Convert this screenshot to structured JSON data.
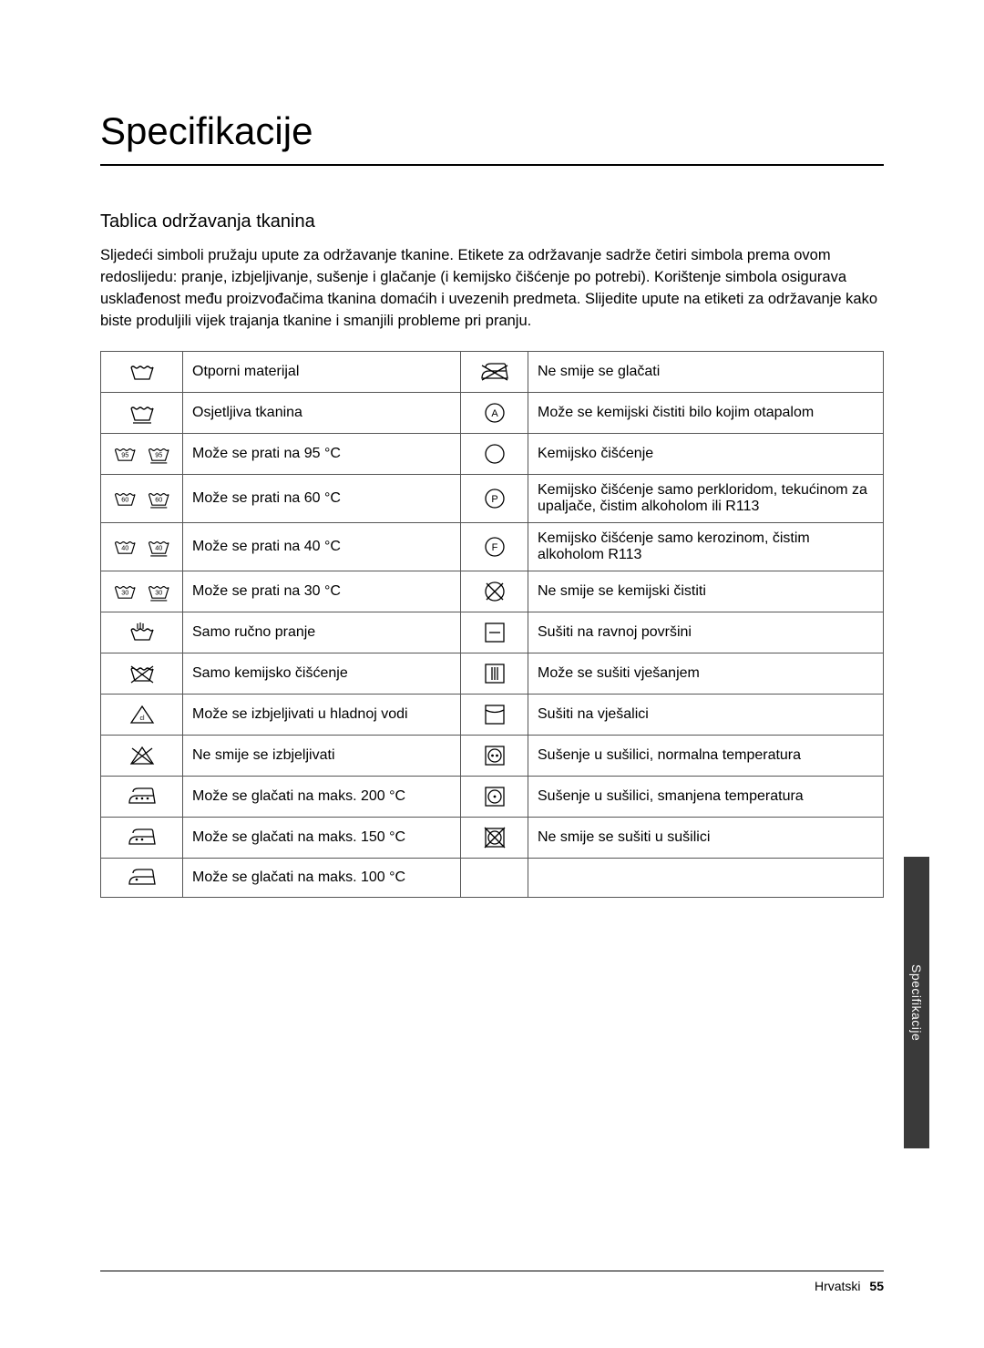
{
  "title": "Specifikacije",
  "subheading": "Tablica održavanja tkanina",
  "intro": "Sljedeći simboli pružaju upute za održavanje tkanine. Etikete za održavanje sadrže četiri simbola prema ovom redoslijedu: pranje, izbjeljivanje, sušenje i glačanje (i kemijsko čišćenje po potrebi). Korištenje simbola osigurava usklađenost među proizvođačima tkanina domaćih i uvezenih predmeta. Slijedite upute na etiketi za održavanje kako biste produljili vijek trajanja tkanine i smanjili probleme pri pranju.",
  "rows": [
    {
      "l": "Otporni materijal",
      "r": "Ne smije se glačati",
      "li": "wash-strong",
      "ri": "no-iron"
    },
    {
      "l": "Osjetljiva tkanina",
      "r": "Može se kemijski čistiti bilo kojim otapalom",
      "li": "wash-delicate",
      "ri": "circle-A"
    },
    {
      "l": "Može se prati na 95 °C",
      "r": "Kemijsko čišćenje",
      "li": "wash-95",
      "ri": "circle"
    },
    {
      "l": "Može se prati na 60 °C",
      "r": "Kemijsko čišćenje samo perkloridom, tekućinom za upaljače, čistim alkoholom ili R113",
      "li": "wash-60",
      "ri": "circle-P"
    },
    {
      "l": "Može se prati na 40 °C",
      "r": "Kemijsko čišćenje samo kerozinom, čistim alkoholom R113",
      "li": "wash-40",
      "ri": "circle-F"
    },
    {
      "l": "Može se prati na 30 °C",
      "r": "Ne smije se kemijski čistiti",
      "li": "wash-30",
      "ri": "circle-x"
    },
    {
      "l": "Samo ručno pranje",
      "r": "Sušiti na ravnoj površini",
      "li": "hand-wash",
      "ri": "dry-flat"
    },
    {
      "l": "Samo kemijsko čišćenje",
      "r": "Može se sušiti vješanjem",
      "li": "no-wash",
      "ri": "dry-hang"
    },
    {
      "l": "Može se izbjeljivati u hladnoj vodi",
      "r": "Sušiti na vješalici",
      "li": "bleach-cl",
      "ri": "dry-drip"
    },
    {
      "l": "Ne smije se izbjeljivati",
      "r": "Sušenje u sušilici, normalna temperatura",
      "li": "no-bleach",
      "ri": "tumble-normal"
    },
    {
      "l": "Može se glačati na maks. 200 °C",
      "r": "Sušenje u sušilici, smanjena temperatura",
      "li": "iron-3",
      "ri": "tumble-low"
    },
    {
      "l": "Može se glačati na maks. 150 °C",
      "r": "Ne smije se sušiti u sušilici",
      "li": "iron-2",
      "ri": "no-tumble"
    },
    {
      "l": "Može se glačati na maks. 100 °C",
      "r": "",
      "li": "iron-1",
      "ri": ""
    }
  ],
  "sideTab": "Specifikacije",
  "footerLang": "Hrvatski",
  "footerPage": "55",
  "style": {
    "titleFontSize": 42,
    "subFontSize": 20,
    "bodyFontSize": 16.5,
    "cellFontSize": 16,
    "borderColor": "#555555",
    "tabBg": "#3a3a3a",
    "tabColor": "#ffffff"
  }
}
